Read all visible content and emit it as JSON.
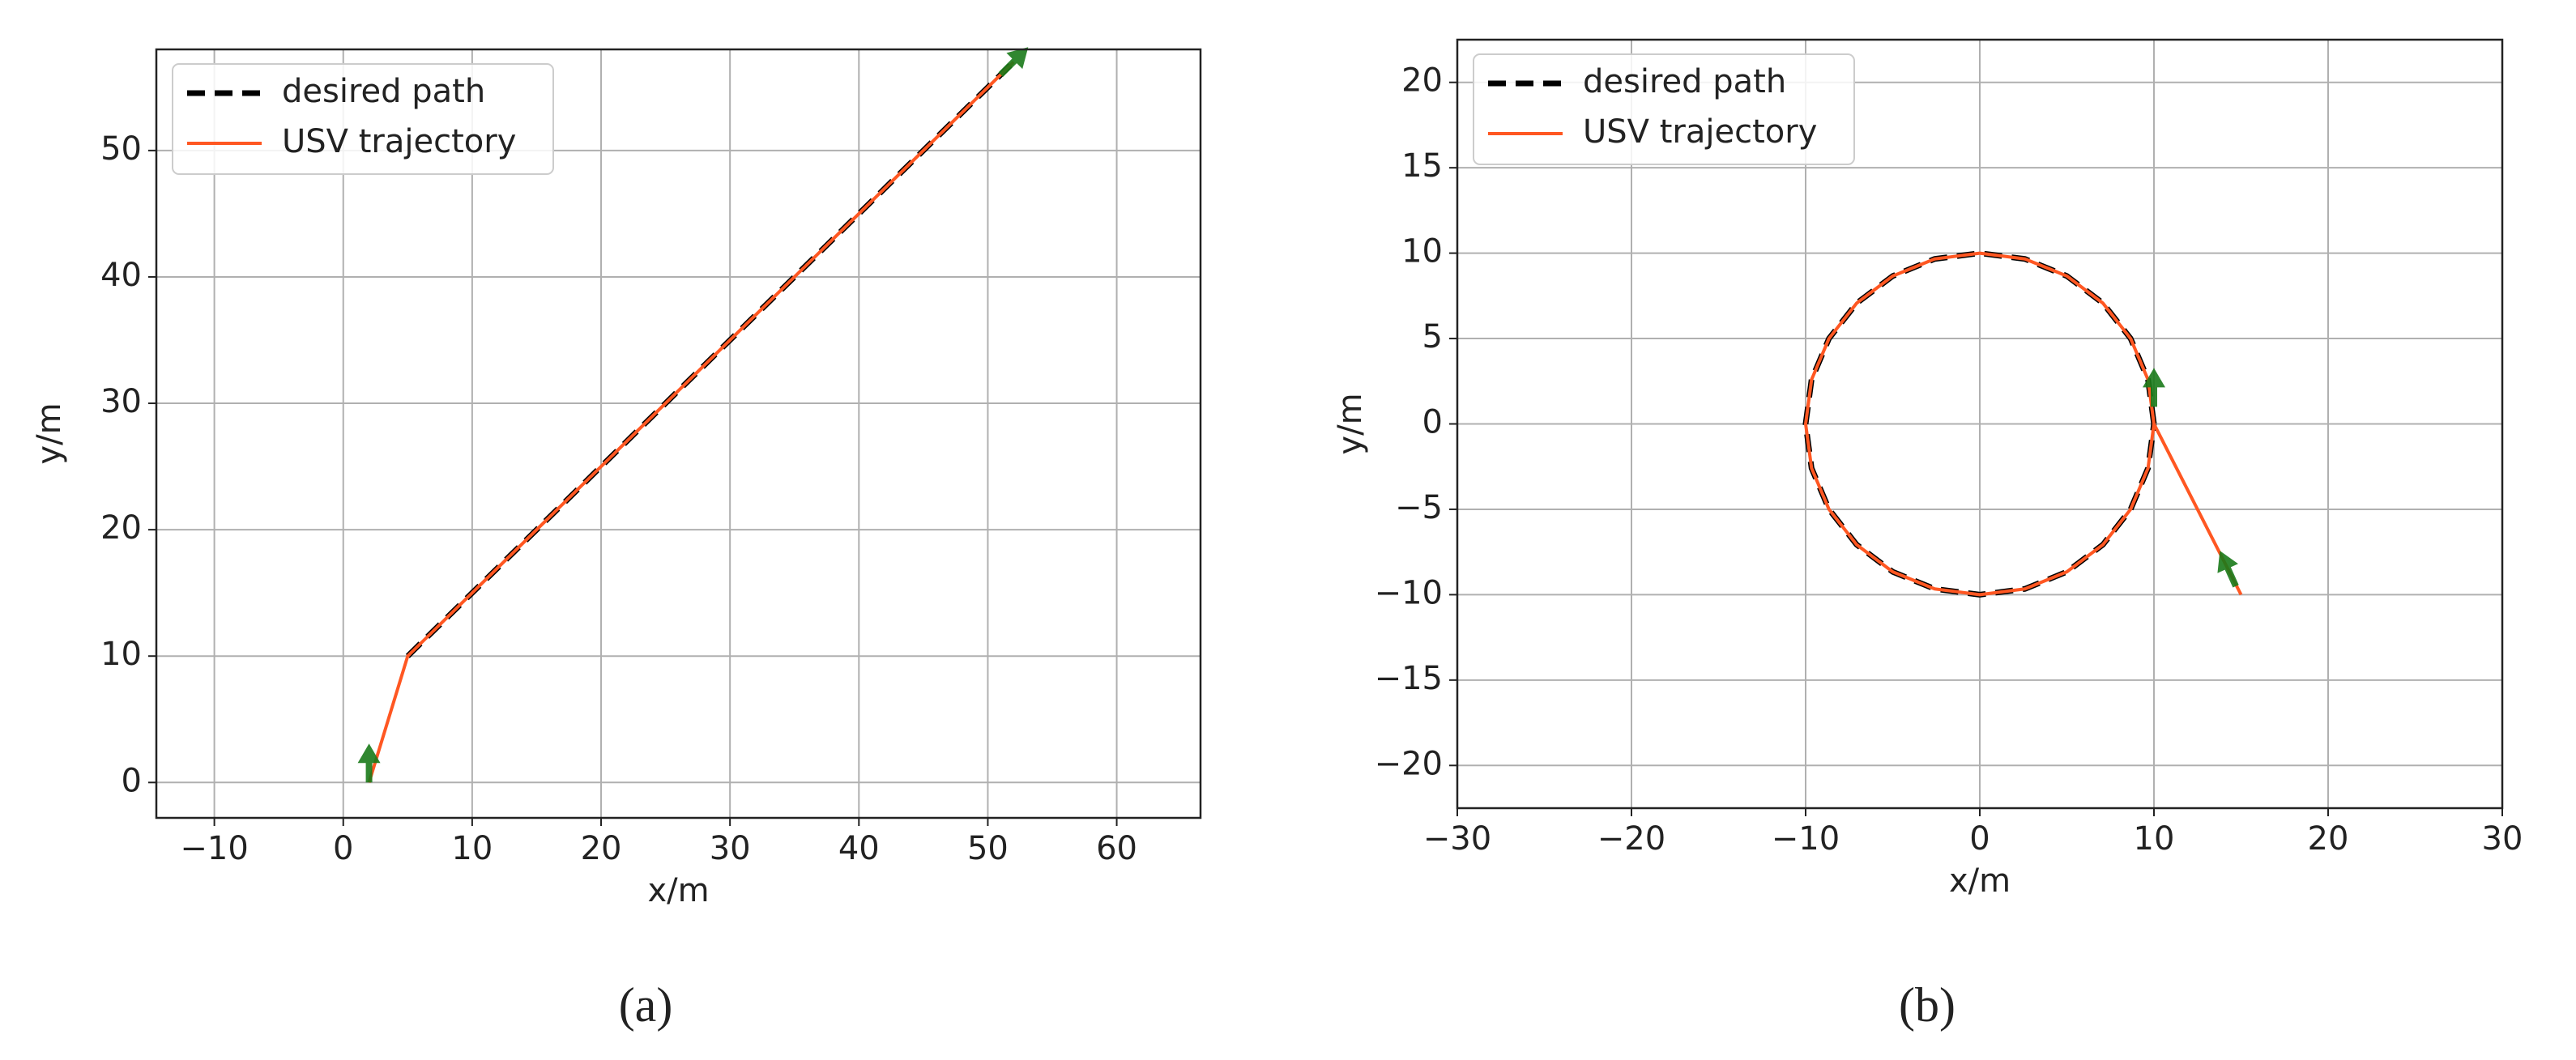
{
  "chart_data": [
    {
      "type": "line",
      "caption": "(a)",
      "xlabel": "x/m",
      "ylabel": "y/m",
      "xlim": [
        -14.5,
        66.5
      ],
      "ylim": [
        -2.8,
        58
      ],
      "xticks": [
        {
          "value": -10,
          "label": "−10"
        },
        0,
        10,
        20,
        30,
        40,
        50,
        60
      ],
      "yticks": [
        0,
        10,
        20,
        30,
        40,
        50
      ],
      "grid": true,
      "legend": "upper left",
      "series": [
        {
          "name": "desired path",
          "color": "#000000",
          "style": "dashed",
          "x": [
            5,
            52
          ],
          "y": [
            10,
            57
          ]
        },
        {
          "name": "USV trajectory",
          "color": "#ff5722",
          "style": "solid",
          "x": [
            2,
            5,
            7,
            52
          ],
          "y": [
            0,
            10,
            12,
            57
          ]
        }
      ],
      "arrows": {
        "color": "#1a7a1a",
        "x": [
          2,
          51
        ],
        "y": [
          0,
          56
        ],
        "u": [
          0,
          1
        ],
        "v": [
          1,
          1
        ]
      }
    },
    {
      "type": "line",
      "caption": "(b)",
      "xlabel": "x/m",
      "ylabel": "y/m",
      "xlim": [
        -30,
        30
      ],
      "ylim": [
        -22.5,
        22.5
      ],
      "xticks": [
        {
          "value": -30,
          "label": "−30"
        },
        {
          "value": -20,
          "label": "−20"
        },
        {
          "value": -10,
          "label": "−10"
        },
        0,
        10,
        20,
        30
      ],
      "yticks": [
        {
          "value": -20,
          "label": "−20"
        },
        {
          "value": -15,
          "label": "−15"
        },
        {
          "value": -10,
          "label": "−10"
        },
        {
          "value": -5,
          "label": "−5"
        },
        0,
        5,
        10,
        15,
        20
      ],
      "grid": true,
      "legend": "upper left",
      "series": [
        {
          "name": "desired path",
          "color": "#000000",
          "style": "dashed",
          "x": [
            10,
            9.66,
            8.66,
            7.07,
            5,
            2.59,
            0,
            -2.59,
            -5,
            -7.07,
            -8.66,
            -9.66,
            -10,
            -9.66,
            -8.66,
            -7.07,
            -5,
            -2.59,
            0,
            2.59,
            5,
            7.07,
            8.66,
            9.66,
            10
          ],
          "y": [
            0,
            2.59,
            5,
            7.07,
            8.66,
            9.66,
            10,
            9.66,
            8.66,
            7.07,
            5,
            2.59,
            0,
            -2.59,
            -5,
            -7.07,
            -8.66,
            -9.66,
            -10,
            -9.66,
            -8.66,
            -7.07,
            -5,
            -2.59,
            0
          ]
        },
        {
          "name": "USV trajectory",
          "color": "#ff5722",
          "style": "solid",
          "x": [
            15,
            10,
            9.66,
            8.66,
            7.07,
            5,
            2.59,
            0,
            -2.59,
            -5,
            -7.07,
            -8.66,
            -9.66,
            -10,
            -9.66,
            -8.66,
            -7.07,
            -5,
            -2.59,
            0,
            2.59,
            5,
            7.07,
            8.66,
            9.66,
            10
          ],
          "y": [
            -10,
            0,
            2.59,
            5,
            7.07,
            8.66,
            9.66,
            10,
            9.66,
            8.66,
            7.07,
            5,
            2.59,
            0,
            -2.59,
            -5,
            -7.07,
            -8.66,
            -9.66,
            -10,
            -9.66,
            -8.66,
            -7.07,
            -5,
            -2.59,
            0
          ]
        }
      ],
      "arrows": {
        "color": "#1a7a1a",
        "x": [
          14.7,
          10
        ],
        "y": [
          -9.5,
          1
        ],
        "u": [
          -0.45,
          0
        ],
        "v": [
          1,
          1
        ]
      }
    }
  ]
}
